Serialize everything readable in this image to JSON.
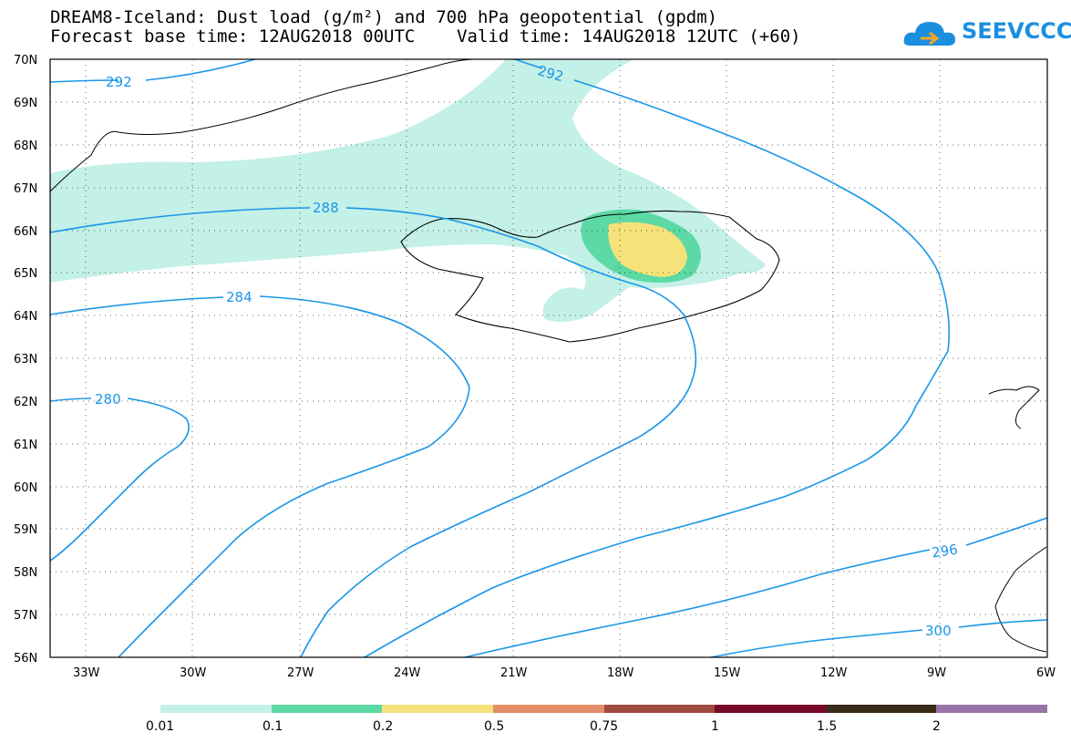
{
  "header": {
    "title_line1": "DREAM8-Iceland: Dust load (g/m²) and 700 hPa geopotential (gpdm)",
    "title_line2": "Forecast base time: 12AUG2018 00UTC    Valid time: 14AUG2018 12UTC (+60)"
  },
  "logo": {
    "text": "SEEVCCC",
    "icon": "cloud-logo-icon"
  },
  "map": {
    "lat_labels": [
      "70N",
      "69N",
      "68N",
      "67N",
      "66N",
      "65N",
      "64N",
      "63N",
      "62N",
      "61N",
      "60N",
      "59N",
      "58N",
      "57N",
      "56N"
    ],
    "lon_labels": [
      "33W",
      "30W",
      "27W",
      "24W",
      "21W",
      "18W",
      "15W",
      "12W",
      "9W",
      "6W"
    ],
    "contour_labels": [
      "292",
      "292",
      "288",
      "284",
      "280",
      "296",
      "300"
    ],
    "contour_color": "#1a96e8",
    "coastline_color": "#000000"
  },
  "colorbar": {
    "labels": [
      "0.01",
      "0.1",
      "0.2",
      "0.5",
      "0.75",
      "1",
      "1.5",
      "2"
    ],
    "colors": [
      "#c3f0e7",
      "#5cd9a4",
      "#f5e27a",
      "#e58d69",
      "#a04a41",
      "#7a0a2c",
      "#3a2a18",
      "#9a74a6"
    ]
  }
}
